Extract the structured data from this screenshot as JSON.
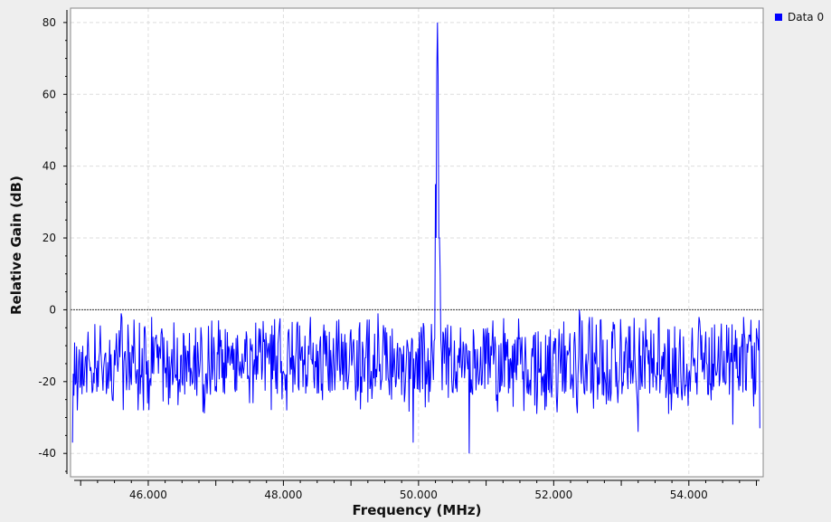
{
  "chart_data": {
    "type": "line",
    "title": "",
    "xlabel": "Frequency (MHz)",
    "ylabel": "Relative Gain (dB)",
    "xlim": [
      44.85,
      55.1
    ],
    "ylim": [
      -46.5,
      84
    ],
    "x_ticks": [
      46,
      48,
      50,
      52,
      54
    ],
    "x_tick_labels": [
      "46.000",
      "48.000",
      "50.000",
      "52.000",
      "54.000"
    ],
    "y_ticks": [
      -40,
      -20,
      0,
      20,
      40,
      60,
      80
    ],
    "y_tick_labels": [
      "-40",
      "-20",
      "0",
      "20",
      "40",
      "60",
      "80"
    ],
    "reference_line_y": 0,
    "grid": true,
    "legend_position": "top-right",
    "series": [
      {
        "name": "Data 0",
        "color": "#0000ff",
        "x_start": 44.88,
        "x_end": 55.05,
        "peak": {
          "x": 50.28,
          "y": 80
        },
        "noise_floor_range": [
          -30,
          -1
        ],
        "notable_points": [
          [
            44.88,
            -37
          ],
          [
            44.95,
            -28
          ],
          [
            45.6,
            -1
          ],
          [
            45.65,
            -12
          ],
          [
            46.05,
            -2
          ],
          [
            46.55,
            -10
          ],
          [
            46.7,
            -5
          ],
          [
            47.5,
            -26
          ],
          [
            48.05,
            -28
          ],
          [
            48.4,
            -2
          ],
          [
            49.2,
            -20
          ],
          [
            49.4,
            -1
          ],
          [
            49.6,
            -25
          ],
          [
            49.92,
            -37
          ],
          [
            50.2,
            -10
          ],
          [
            50.25,
            35
          ],
          [
            50.28,
            80
          ],
          [
            50.32,
            10
          ],
          [
            50.4,
            -5
          ],
          [
            50.75,
            -40
          ],
          [
            51.1,
            -3
          ],
          [
            51.4,
            -27
          ],
          [
            51.75,
            -29
          ],
          [
            52.38,
            0
          ],
          [
            52.42,
            -3
          ],
          [
            52.65,
            -25
          ],
          [
            53.25,
            -34
          ],
          [
            53.7,
            -29
          ],
          [
            54.05,
            -5
          ],
          [
            54.65,
            -32
          ],
          [
            55.05,
            -33
          ]
        ]
      }
    ]
  }
}
